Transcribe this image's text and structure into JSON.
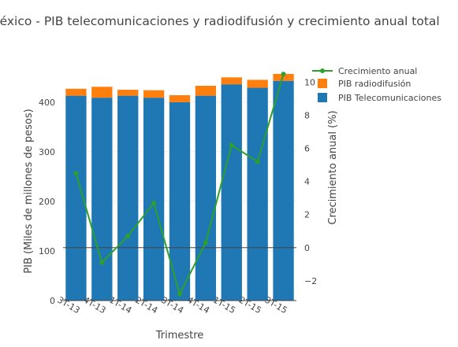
{
  "chart_data": {
    "type": "bar",
    "title": "México - PIB telecomunicaciones y radiodifusión y crecimiento anual total",
    "xlabel": "Trimestre",
    "ylabel": "PIB (Miles de millones de pesos)",
    "y2label": "Crecimiento anual (%)",
    "categories": [
      "3T-13",
      "4T-13",
      "1T-14",
      "2T-14",
      "3T-14",
      "4T-14",
      "1T-15",
      "2T-15",
      "3T-15"
    ],
    "ylim": [
      0,
      460
    ],
    "yticks": [
      0,
      100,
      200,
      300,
      400
    ],
    "y2lim": [
      -3.2,
      10.6
    ],
    "y2ticks": [
      -2,
      0,
      2,
      4,
      6,
      8,
      10
    ],
    "stacked": true,
    "series": [
      {
        "name": "PIB Telecomunicaciones",
        "kind": "bar",
        "axis": "y",
        "color": "#1f77b4",
        "values": [
          413,
          409,
          413,
          409,
          400,
          413,
          436,
          429,
          443
        ]
      },
      {
        "name": "PIB radiodifusión",
        "kind": "bar",
        "axis": "y",
        "color": "#ff7f0e",
        "values": [
          14,
          22,
          12,
          15,
          14,
          20,
          14,
          16,
          14
        ]
      },
      {
        "name": "Crecimiento anual",
        "kind": "line",
        "axis": "y2",
        "color": "#2ca02c",
        "values": [
          4.5,
          -0.9,
          0.7,
          2.7,
          -2.8,
          0.3,
          6.2,
          5.2,
          10.5
        ]
      }
    ],
    "legend_position": "top-right",
    "grid": true
  }
}
